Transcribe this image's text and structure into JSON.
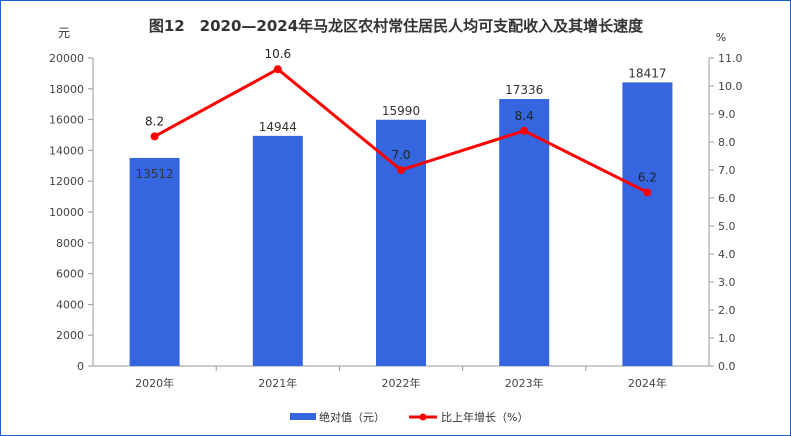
{
  "chart_data": {
    "type": "bar+line",
    "title": "图12　2020—2024年马龙区农村常住居民人均可支配收入及其增长速度",
    "categories": [
      "2020年",
      "2021年",
      "2022年",
      "2023年",
      "2024年"
    ],
    "left_axis": {
      "unit": "元",
      "range": [
        0,
        20000
      ],
      "ticks": [
        "0",
        "2000",
        "4000",
        "6000",
        "8000",
        "10000",
        "12000",
        "14000",
        "16000",
        "18000",
        "20000"
      ]
    },
    "right_axis": {
      "unit": "%",
      "range": [
        0,
        11
      ],
      "ticks": [
        "0.0",
        "1.0",
        "2.0",
        "3.0",
        "4.0",
        "5.0",
        "6.0",
        "7.0",
        "8.0",
        "9.0",
        "10.0",
        "11.0"
      ]
    },
    "series": [
      {
        "name": "绝对值（元）",
        "type": "bar",
        "axis": "left",
        "color": "#3566e0",
        "values": [
          13512,
          14944,
          15990,
          17336,
          18417
        ]
      },
      {
        "name": "比上年增长（%）",
        "type": "line",
        "axis": "right",
        "color": "#ff0000",
        "values": [
          8.2,
          10.6,
          7.0,
          8.4,
          6.2
        ]
      }
    ],
    "legend": "bottom",
    "grid": false
  }
}
